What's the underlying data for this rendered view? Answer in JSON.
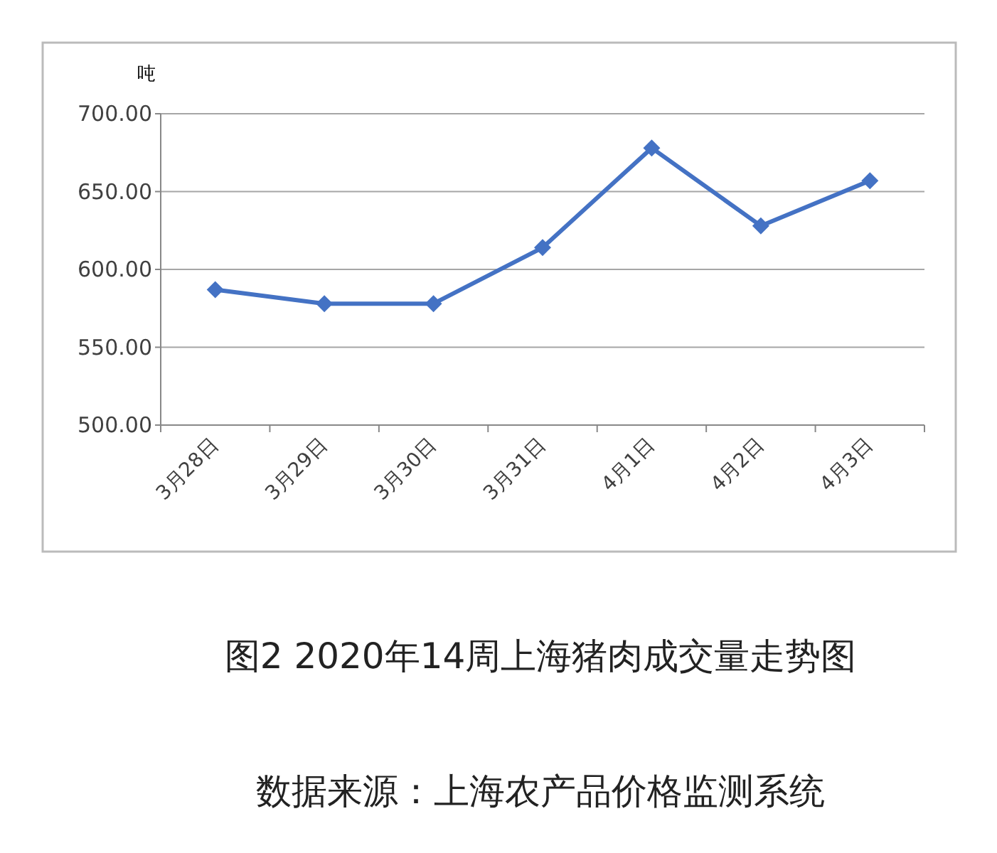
{
  "chart_data": {
    "type": "line",
    "title": "图2 2020年14周上海猪肉成交量走势图",
    "ylabel": "吨",
    "annotations": [
      "数据来源：上海农产品价格监测系统"
    ],
    "categories": [
      "3月28日",
      "3月29日",
      "3月30日",
      "3月31日",
      "4月1日",
      "4月2日",
      "4月3日"
    ],
    "series": [
      {
        "color": "#4472c4",
        "values": [
          587,
          578,
          578,
          614,
          678,
          628,
          657
        ]
      }
    ],
    "ylim": [
      500,
      700
    ],
    "yticks": [
      {
        "value": 500,
        "label": "500.00"
      },
      {
        "value": 550,
        "label": "550.00"
      },
      {
        "value": 600,
        "label": "600.00"
      },
      {
        "value": 650,
        "label": "650.00"
      },
      {
        "value": 700,
        "label": "700.00"
      }
    ],
    "grid": "y",
    "marker": "diamond",
    "line_style": "solid"
  }
}
